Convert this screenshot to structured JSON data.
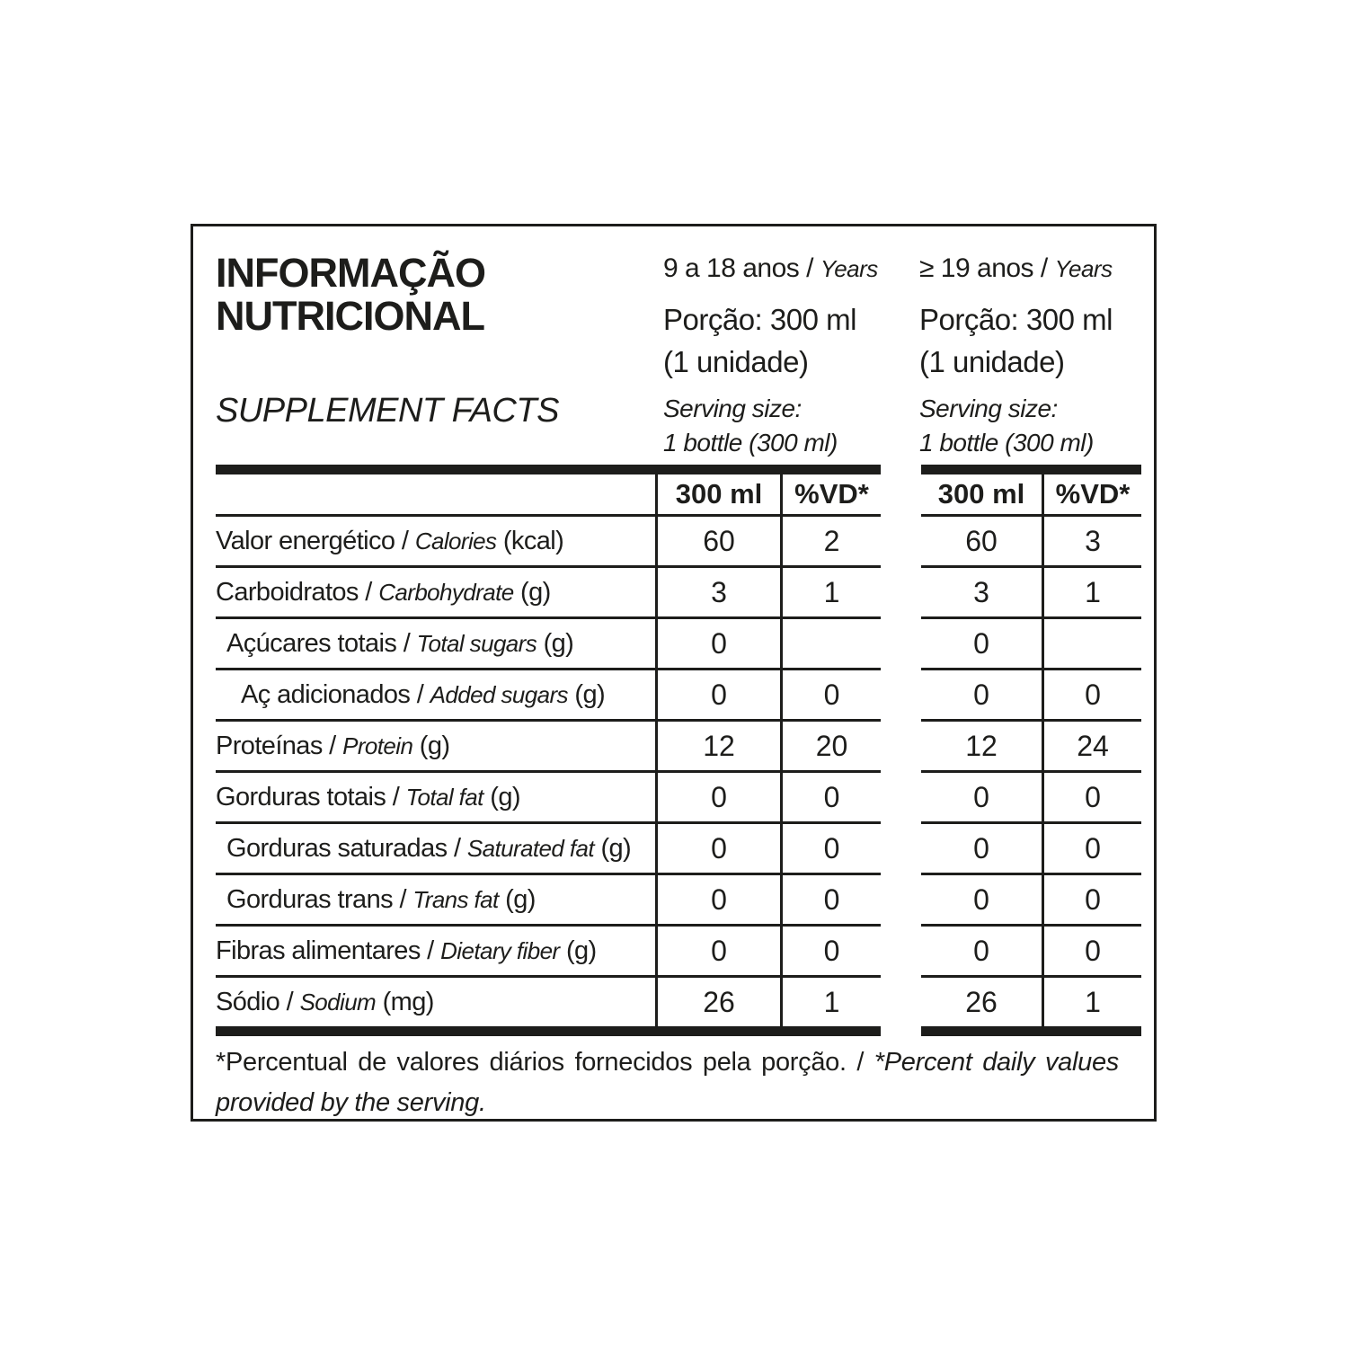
{
  "colors": {
    "ink": "#1d1d1b",
    "background": "#ffffff"
  },
  "header": {
    "title_line1": "INFORMAÇÃO",
    "title_line2": "NUTRICIONAL",
    "subtitle": "SUPPLEMENT FACTS",
    "groups": [
      {
        "age_pt": "9 a 18 anos /",
        "age_en": "Years",
        "portion_line1": "Porção: 300 ml",
        "portion_line2": "(1 unidade)",
        "serving_line1": "Serving size:",
        "serving_line2": "1 bottle (300 ml)",
        "col_amount": "300 ml",
        "col_dv": "%VD*"
      },
      {
        "age_pt": "≥ 19 anos /",
        "age_en": "Years",
        "portion_line1": "Porção: 300 ml",
        "portion_line2": "(1 unidade)",
        "serving_line1": "Serving size:",
        "serving_line2": "1 bottle (300 ml)",
        "col_amount": "300 ml",
        "col_dv": "%VD*"
      }
    ]
  },
  "table": {
    "rows": [
      {
        "pt": "Valor energético /",
        "en": "Calories",
        "unit": "(kcal)",
        "indent": 0,
        "values": [
          "60",
          "2",
          "60",
          "3"
        ]
      },
      {
        "pt": "Carboidratos /",
        "en": "Carbohydrate",
        "unit": "(g)",
        "indent": 0,
        "values": [
          "3",
          "1",
          "3",
          "1"
        ]
      },
      {
        "pt": "Açúcares totais /",
        "en": "Total sugars",
        "unit": "(g)",
        "indent": 1,
        "values": [
          "0",
          "",
          "0",
          ""
        ]
      },
      {
        "pt": "Aç adicionados /",
        "en": "Added sugars",
        "unit": "(g)",
        "indent": 2,
        "values": [
          "0",
          "0",
          "0",
          "0"
        ]
      },
      {
        "pt": "Proteínas /",
        "en": "Protein",
        "unit": "(g)",
        "indent": 0,
        "values": [
          "12",
          "20",
          "12",
          "24"
        ]
      },
      {
        "pt": "Gorduras totais /",
        "en": "Total fat",
        "unit": "(g)",
        "indent": 0,
        "values": [
          "0",
          "0",
          "0",
          "0"
        ]
      },
      {
        "pt": "Gorduras saturadas /",
        "en": "Saturated fat",
        "unit": "(g)",
        "indent": 1,
        "values": [
          "0",
          "0",
          "0",
          "0"
        ]
      },
      {
        "pt": "Gorduras trans /",
        "en": "Trans fat",
        "unit": "(g)",
        "indent": 1,
        "values": [
          "0",
          "0",
          "0",
          "0"
        ]
      },
      {
        "pt": "Fibras alimentares /",
        "en": "Dietary fiber",
        "unit": "(g)",
        "indent": 0,
        "values": [
          "0",
          "0",
          "0",
          "0"
        ]
      },
      {
        "pt": "Sódio /",
        "en": "Sodium",
        "unit": "(mg)",
        "indent": 0,
        "values": [
          "26",
          "1",
          "26",
          "1"
        ]
      }
    ]
  },
  "footer": {
    "pt": "*Percentual de valores diários fornecidos pela porção. /",
    "en": "*Percent daily values provided by the serving."
  }
}
